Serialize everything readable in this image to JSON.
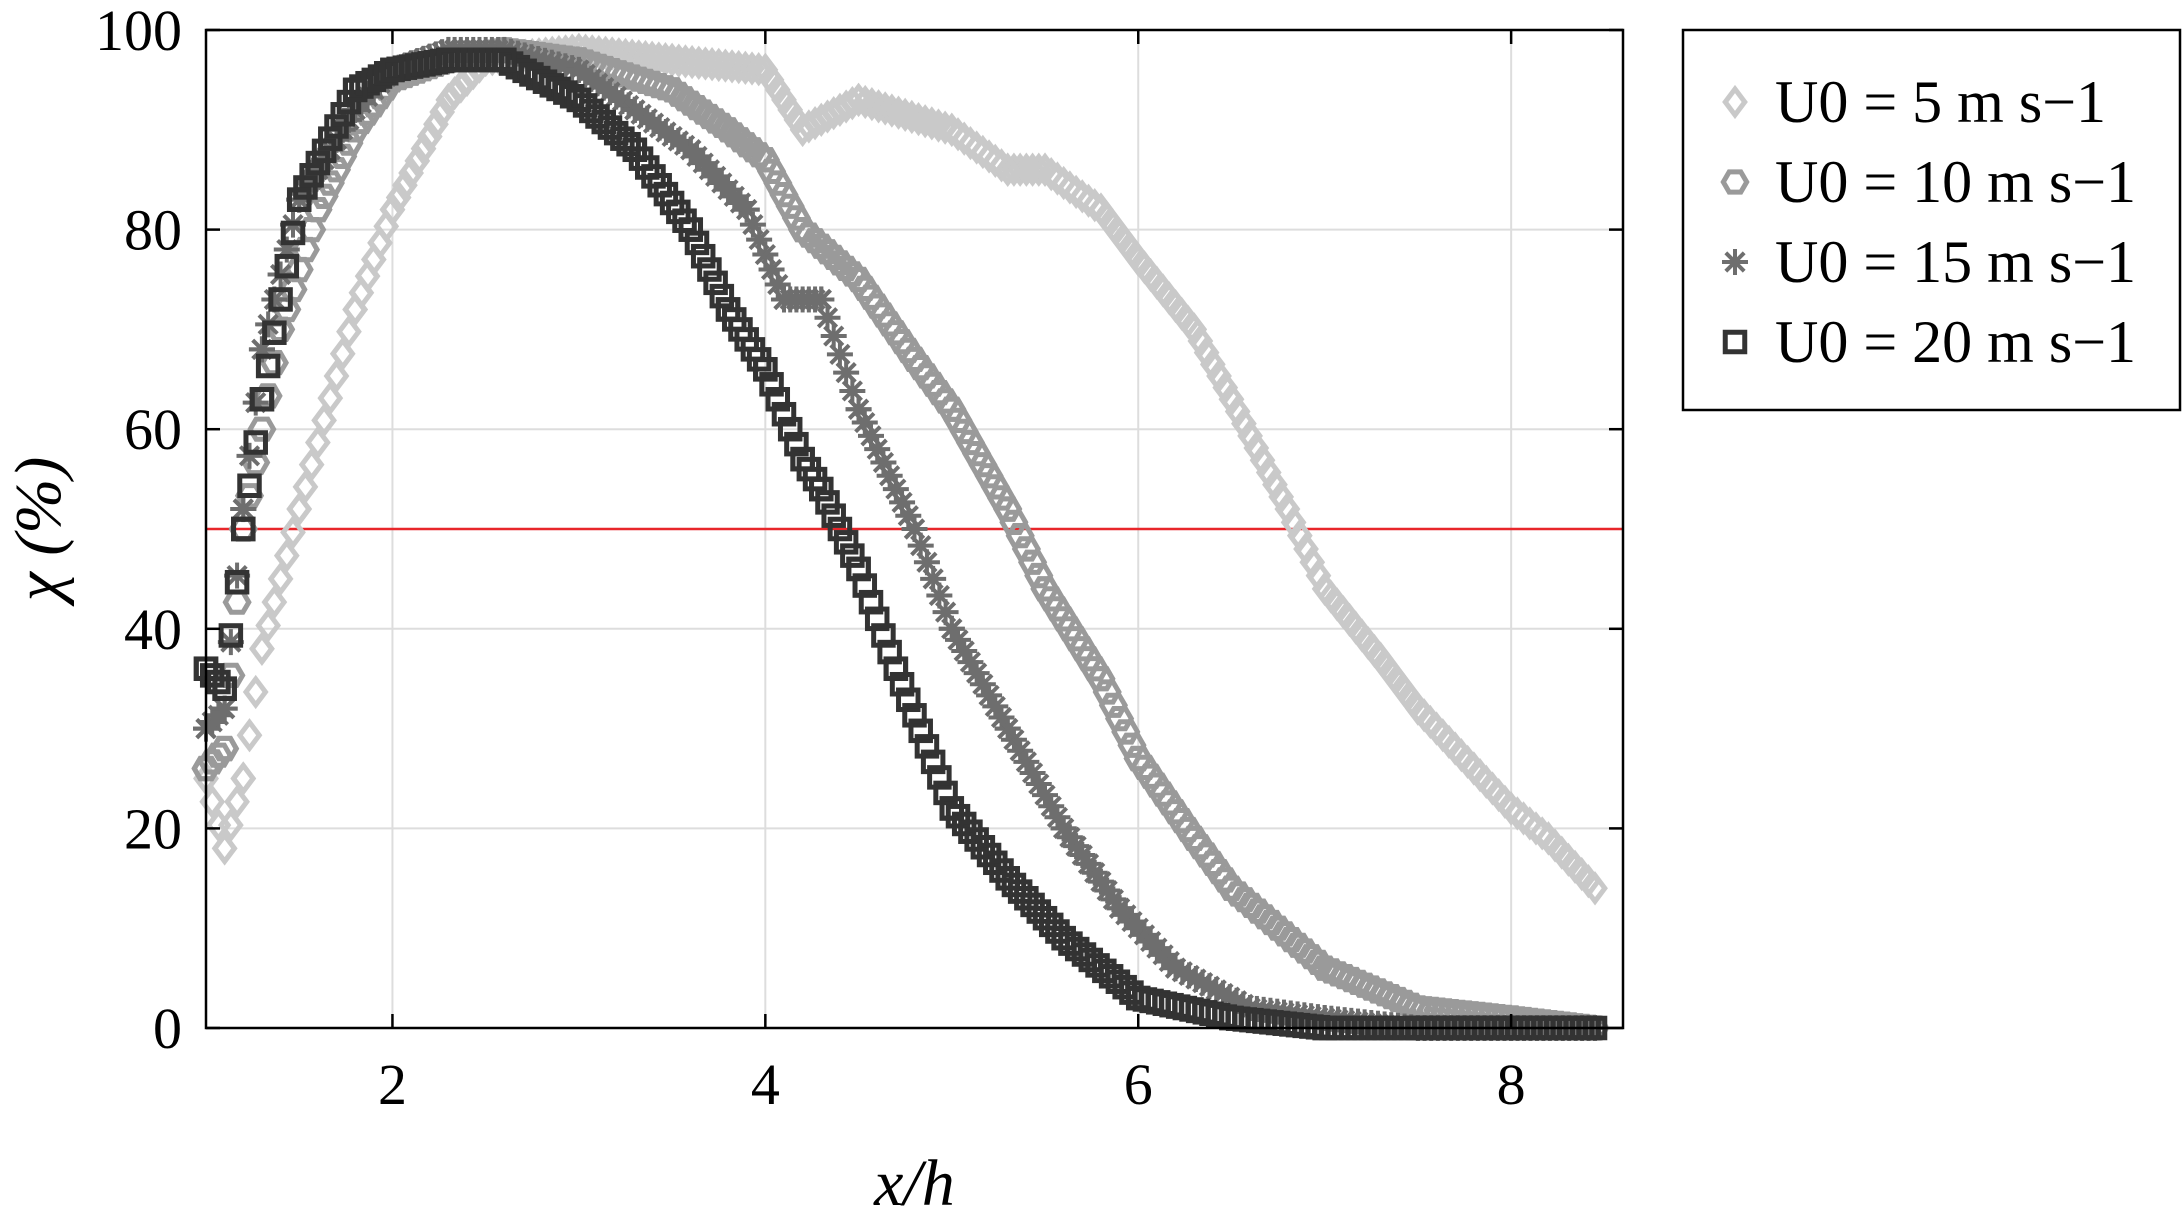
{
  "chart_data": {
    "type": "scatter",
    "xlabel": "x/h",
    "ylabel": "χ (%)",
    "xlim": [
      1,
      8.6
    ],
    "ylim": [
      0,
      100
    ],
    "xticks": [
      2,
      4,
      6,
      8
    ],
    "yticks": [
      0,
      20,
      40,
      60,
      80,
      100
    ],
    "grid": true,
    "legend_position": "outside-right-top",
    "reference_line": {
      "y": 50,
      "color": "#e8262a"
    },
    "series": [
      {
        "name": "U0 = 5 m s−1",
        "marker": "diamond",
        "color": "#c9c9c9",
        "x": [
          1.0,
          1.1,
          1.2,
          1.3,
          1.5,
          1.8,
          2.0,
          2.3,
          2.5,
          3.0,
          3.5,
          4.0,
          4.2,
          4.5,
          5.0,
          5.3,
          5.5,
          5.8,
          6.0,
          6.3,
          6.5,
          6.8,
          7.0,
          7.3,
          7.5,
          7.8,
          8.0,
          8.2,
          8.45
        ],
        "y": [
          25,
          18,
          25,
          38,
          52,
          72,
          82,
          93,
          97,
          98,
          97,
          96,
          90,
          93,
          90,
          86,
          86,
          82,
          77,
          70,
          63,
          52,
          44,
          37,
          32,
          26,
          22,
          19,
          14
        ]
      },
      {
        "name": "U0 = 10 m s−1",
        "marker": "hexagon",
        "color": "#9a9a9a",
        "x": [
          1.0,
          1.1,
          1.2,
          1.4,
          1.6,
          1.8,
          2.0,
          2.3,
          2.6,
          3.0,
          3.5,
          3.8,
          4.0,
          4.2,
          4.5,
          4.8,
          5.0,
          5.3,
          5.5,
          5.8,
          6.0,
          6.3,
          6.5,
          7.0,
          7.5,
          8.0,
          8.45
        ],
        "y": [
          26,
          28,
          50,
          70,
          82,
          90,
          95,
          97,
          98,
          97,
          94,
          90,
          87,
          80,
          75,
          67,
          62,
          52,
          44,
          35,
          27,
          19,
          14,
          6,
          2,
          1,
          0
        ]
      },
      {
        "name": "U0 = 15 m s−1",
        "marker": "asterisk",
        "color": "#6e6e6e",
        "x": [
          1.0,
          1.1,
          1.2,
          1.3,
          1.5,
          1.8,
          2.0,
          2.3,
          2.6,
          3.0,
          3.3,
          3.6,
          3.9,
          4.1,
          4.3,
          4.5,
          4.8,
          5.0,
          5.3,
          5.6,
          5.9,
          6.2,
          6.6,
          7.0,
          7.5,
          8.0,
          8.45
        ],
        "y": [
          30,
          32,
          52,
          68,
          83,
          92,
          96,
          98,
          98,
          96,
          92,
          88,
          82,
          73,
          73,
          62,
          50,
          40,
          30,
          20,
          12,
          6,
          2,
          1,
          0,
          0,
          0
        ]
      },
      {
        "name": "U0 = 20 m s−1",
        "marker": "square",
        "color": "#333333",
        "x": [
          1.0,
          1.1,
          1.2,
          1.3,
          1.5,
          1.8,
          2.0,
          2.3,
          2.6,
          3.0,
          3.3,
          3.6,
          3.8,
          4.0,
          4.2,
          4.3,
          4.5,
          4.7,
          5.0,
          5.3,
          5.6,
          6.0,
          6.5,
          7.0,
          7.5,
          8.0,
          8.45
        ],
        "y": [
          36,
          34,
          50,
          63,
          83,
          94,
          96,
          97,
          97,
          93,
          88,
          80,
          72,
          66,
          57,
          54,
          46,
          36,
          22,
          15,
          9,
          3,
          1,
          0,
          0,
          0,
          0
        ]
      }
    ]
  }
}
